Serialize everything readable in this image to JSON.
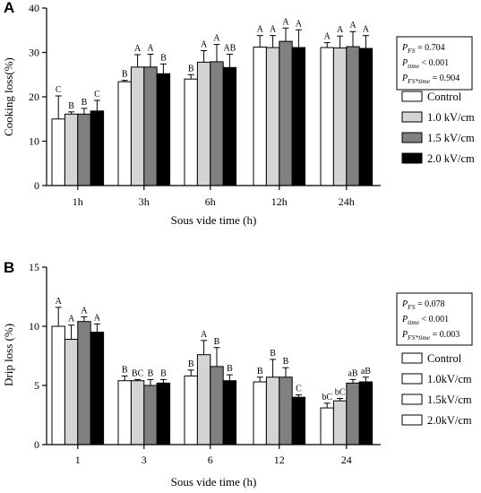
{
  "colors": {
    "Control": "#ffffff",
    "1.0 kV/cm": "#d4d4d4",
    "1.5 kV/cm": "#808080",
    "2.0 kV/cm": "#000000",
    "outline": "#000000"
  },
  "chart_data": [
    {
      "panel": "A",
      "type": "bar",
      "categories": [
        "1h",
        "3h",
        "6h",
        "12h",
        "24h"
      ],
      "xlabel": "Sous vide time (h)",
      "ylabel": "Cooking loss(%)",
      "ylim": [
        0,
        40
      ],
      "yticks": [
        0,
        10,
        20,
        30,
        40
      ],
      "legend": {
        "position": "right",
        "entries": [
          "Control",
          "1.0 kV/cm",
          "1.5 kV/cm",
          "2.0 kV/cm"
        ]
      },
      "stats": [
        "P_FS = 0.704",
        "P_time < 0.001",
        "P_FS*time = 0.904"
      ],
      "series": [
        {
          "name": "Control",
          "values": [
            15.0,
            23.4,
            24.0,
            31.2,
            31.1
          ],
          "errors": [
            5.2,
            0.3,
            1.0,
            2.6,
            1.1
          ],
          "labels": [
            "C",
            "B",
            "B",
            "A",
            "A"
          ]
        },
        {
          "name": "1.0 kV/cm",
          "values": [
            16.1,
            26.7,
            27.8,
            31.1,
            31.0
          ],
          "errors": [
            0.5,
            2.8,
            2.6,
            2.7,
            2.7
          ],
          "labels": [
            "B",
            "A",
            "A",
            "A",
            "A"
          ]
        },
        {
          "name": "1.5 kV/cm",
          "values": [
            16.1,
            26.7,
            27.9,
            32.5,
            31.3
          ],
          "errors": [
            1.3,
            2.9,
            3.9,
            3.0,
            3.4
          ],
          "labels": [
            "B",
            "A",
            "A",
            "A",
            "A"
          ]
        },
        {
          "name": "2.0 kV/cm",
          "values": [
            16.8,
            25.2,
            26.6,
            31.1,
            30.9
          ],
          "errors": [
            2.4,
            2.2,
            3.0,
            4.0,
            2.9
          ],
          "labels": [
            "C",
            "B",
            "AB",
            "A",
            "A"
          ]
        }
      ]
    },
    {
      "panel": "B",
      "type": "bar",
      "categories": [
        "1",
        "3",
        "6",
        "12",
        "24"
      ],
      "xlabel": "Sous vide time (h)",
      "ylabel": "Drip loss (%)",
      "ylim": [
        0,
        15
      ],
      "yticks": [
        0,
        5,
        10,
        15
      ],
      "legend": {
        "position": "right",
        "entries": [
          "Control",
          "1.0kV/cm",
          "1.5kV/cm",
          "2.0kV/cm"
        ]
      },
      "stats": [
        "P_FS = 0.078",
        "P_time < 0.001",
        "P_FS*time = 0.003"
      ],
      "series": [
        {
          "name": "Control",
          "values": [
            10.0,
            5.4,
            5.8,
            5.3,
            3.1
          ],
          "errors": [
            1.6,
            0.4,
            0.5,
            0.4,
            0.4
          ],
          "labels": [
            "A",
            "B",
            "B",
            "B",
            "bC"
          ]
        },
        {
          "name": "1.0kV/cm",
          "values": [
            8.9,
            5.4,
            7.6,
            5.7,
            3.7
          ],
          "errors": [
            1.2,
            0.1,
            1.2,
            1.5,
            0.2
          ],
          "labels": [
            "A",
            "BC",
            "A",
            "B",
            "bC"
          ]
        },
        {
          "name": "1.5kV/cm",
          "values": [
            10.4,
            5.0,
            6.6,
            5.7,
            5.2
          ],
          "errors": [
            0.4,
            0.5,
            1.6,
            0.8,
            0.3
          ],
          "labels": [
            "A",
            "B",
            "B",
            "B",
            "aB"
          ]
        },
        {
          "name": "2.0kV/cm",
          "values": [
            9.5,
            5.2,
            5.4,
            4.0,
            5.3
          ],
          "errors": [
            0.7,
            0.3,
            0.5,
            0.2,
            0.4
          ],
          "labels": [
            "A",
            "B",
            "B",
            "C",
            "aB"
          ]
        }
      ]
    }
  ]
}
